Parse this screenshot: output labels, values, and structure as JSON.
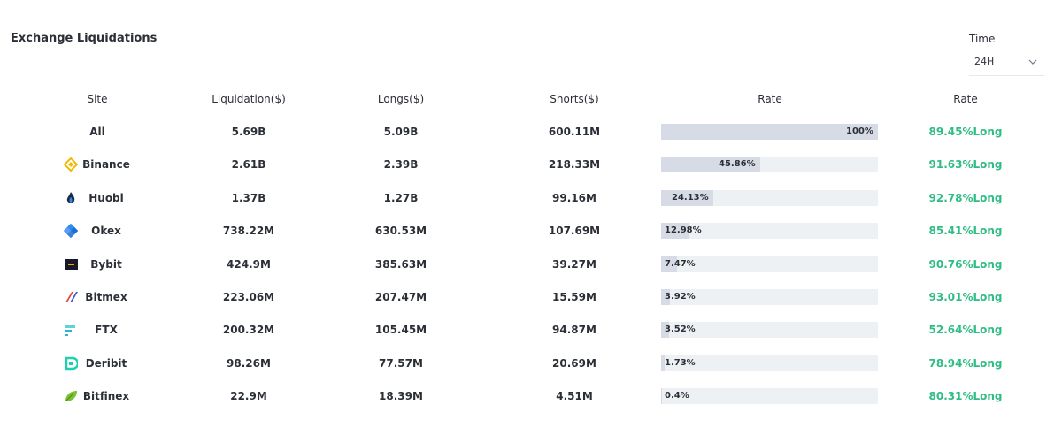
{
  "header": {
    "title": "Exchange Liquidations",
    "time_label": "Time",
    "time_value": "24H"
  },
  "table": {
    "headers": [
      "Site",
      "Liquidation($)",
      "Longs($)",
      "Shorts($)",
      "Rate",
      "Rate"
    ],
    "rows": [
      {
        "site": "All",
        "liquidation": "5.69B",
        "longs": "5.09B",
        "shorts": "600.11M",
        "rate": 100,
        "rate_label": "100%",
        "long_rate": "89.45%Long"
      },
      {
        "site": "Binance",
        "liquidation": "2.61B",
        "longs": "2.39B",
        "shorts": "218.33M",
        "rate": 45.86,
        "rate_label": "45.86%",
        "long_rate": "91.63%Long"
      },
      {
        "site": "Huobi",
        "liquidation": "1.37B",
        "longs": "1.27B",
        "shorts": "99.16M",
        "rate": 24.13,
        "rate_label": "24.13%",
        "long_rate": "92.78%Long"
      },
      {
        "site": "Okex",
        "liquidation": "738.22M",
        "longs": "630.53M",
        "shorts": "107.69M",
        "rate": 12.98,
        "rate_label": "12.98%",
        "long_rate": "85.41%Long"
      },
      {
        "site": "Bybit",
        "liquidation": "424.9M",
        "longs": "385.63M",
        "shorts": "39.27M",
        "rate": 7.47,
        "rate_label": "7.47%",
        "long_rate": "90.76%Long"
      },
      {
        "site": "Bitmex",
        "liquidation": "223.06M",
        "longs": "207.47M",
        "shorts": "15.59M",
        "rate": 3.92,
        "rate_label": "3.92%",
        "long_rate": "93.01%Long"
      },
      {
        "site": "FTX",
        "liquidation": "200.32M",
        "longs": "105.45M",
        "shorts": "94.87M",
        "rate": 3.52,
        "rate_label": "3.52%",
        "long_rate": "52.64%Long"
      },
      {
        "site": "Deribit",
        "liquidation": "98.26M",
        "longs": "77.57M",
        "shorts": "20.69M",
        "rate": 1.73,
        "rate_label": "1.73%",
        "long_rate": "78.94%Long"
      },
      {
        "site": "Bitfinex",
        "liquidation": "22.9M",
        "longs": "18.39M",
        "shorts": "4.51M",
        "rate": 0.4,
        "rate_label": "0.4%",
        "long_rate": "80.31%Long"
      }
    ]
  }
}
